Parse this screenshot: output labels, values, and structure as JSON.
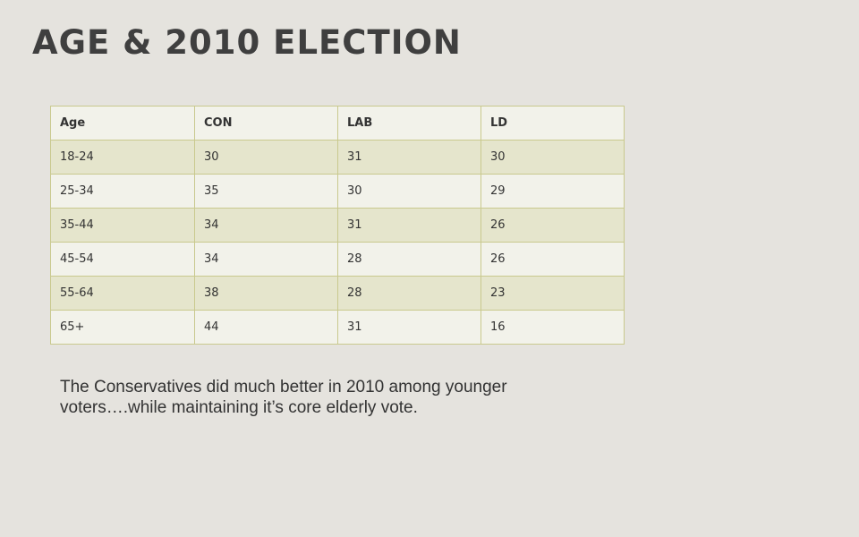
{
  "slide": {
    "title": "AGE & 2010 ELECTION",
    "caption": "The Conservatives did much better in 2010 among younger voters….while maintaining it’s core elderly vote."
  },
  "table": {
    "headers": [
      "Age",
      "CON",
      "LAB",
      "LD"
    ],
    "rows": [
      [
        "18-24",
        "30",
        "31",
        "30"
      ],
      [
        "25-34",
        "35",
        "30",
        "29"
      ],
      [
        "35-44",
        "34",
        "31",
        "26"
      ],
      [
        "45-54",
        "34",
        "28",
        "26"
      ],
      [
        "55-64",
        "38",
        "28",
        "23"
      ],
      [
        "65+",
        "44",
        "31",
        "16"
      ]
    ]
  },
  "colors": {
    "background": "#e5e3de",
    "title": "#3f3f3f",
    "table_border": "#c9c98e",
    "row_band_dark": "#e5e5cc",
    "row_band_light": "#f2f2ea"
  }
}
